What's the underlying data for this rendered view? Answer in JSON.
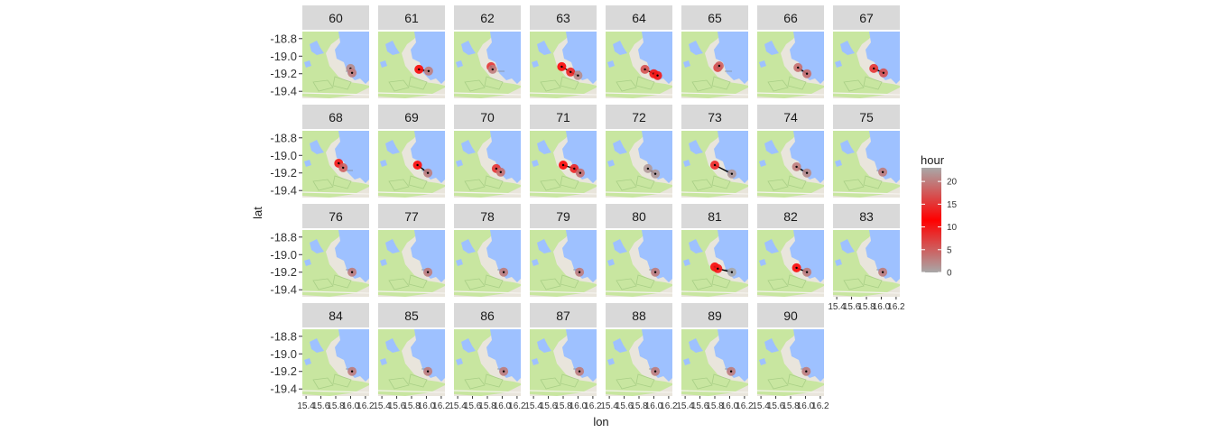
{
  "chart_data": {
    "type": "scatter",
    "title": "",
    "xlabel": "lon",
    "ylabel": "lat",
    "xlim": [
      15.35,
      16.25
    ],
    "ylim": [
      -19.48,
      -18.72
    ],
    "x_ticks": [
      "15.4",
      "15.6",
      "15.8",
      "16.0",
      "16.2"
    ],
    "y_ticks": [
      "-18.8",
      "-19.0",
      "-19.2",
      "-19.4"
    ],
    "y_tick_values": [
      -18.8,
      -19.0,
      -19.2,
      -19.4
    ],
    "background": "map-tiles",
    "facet_ncol": 8,
    "legend": {
      "title": "hour",
      "position": "right",
      "breaks": [
        0,
        5,
        10,
        15,
        20
      ],
      "labels": [
        "0",
        "5",
        "10",
        "15",
        "20"
      ],
      "range": [
        0,
        23
      ],
      "low_color": "#a8a8a8",
      "mid_color": "#ff0000",
      "high_color": "#a8a8a8"
    },
    "facets": [
      {
        "label": "60",
        "points": [
          {
            "lon": 16.0,
            "lat": -19.14,
            "hour": 2
          },
          {
            "lon": 16.02,
            "lat": -19.19,
            "hour": 20
          }
        ]
      },
      {
        "label": "61",
        "points": [
          {
            "lon": 15.9,
            "lat": -19.15,
            "hour": 12
          },
          {
            "lon": 16.03,
            "lat": -19.17,
            "hour": 20
          }
        ]
      },
      {
        "label": "62",
        "points": [
          {
            "lon": 15.85,
            "lat": -19.12,
            "hour": 15
          },
          {
            "lon": 15.87,
            "lat": -19.15,
            "hour": 20
          }
        ]
      },
      {
        "label": "63",
        "points": [
          {
            "lon": 15.78,
            "lat": -19.12,
            "hour": 11
          },
          {
            "lon": 15.9,
            "lat": -19.18,
            "hour": 14
          },
          {
            "lon": 16.0,
            "lat": -19.22,
            "hour": 2
          }
        ]
      },
      {
        "label": "64",
        "points": [
          {
            "lon": 15.88,
            "lat": -19.15,
            "hour": 6
          },
          {
            "lon": 16.0,
            "lat": -19.2,
            "hour": 13
          },
          {
            "lon": 16.05,
            "lat": -19.22,
            "hour": 10
          }
        ]
      },
      {
        "label": "65",
        "points": [
          {
            "lon": 15.84,
            "lat": -19.13,
            "hour": 16
          },
          {
            "lon": 15.86,
            "lat": -19.11,
            "hour": 18
          }
        ]
      },
      {
        "label": "66",
        "points": [
          {
            "lon": 15.9,
            "lat": -19.13,
            "hour": 4
          },
          {
            "lon": 16.02,
            "lat": -19.2,
            "hour": 19
          }
        ]
      },
      {
        "label": "67",
        "points": [
          {
            "lon": 15.9,
            "lat": -19.14,
            "hour": 8
          },
          {
            "lon": 16.03,
            "lat": -19.19,
            "hour": 17
          }
        ]
      },
      {
        "label": "68",
        "points": [
          {
            "lon": 15.84,
            "lat": -19.09,
            "hour": 13
          },
          {
            "lon": 15.9,
            "lat": -19.14,
            "hour": 18
          }
        ]
      },
      {
        "label": "69",
        "points": [
          {
            "lon": 15.88,
            "lat": -19.11,
            "hour": 11
          },
          {
            "lon": 16.02,
            "lat": -19.2,
            "hour": 20
          }
        ]
      },
      {
        "label": "70",
        "points": [
          {
            "lon": 15.92,
            "lat": -19.15,
            "hour": 15
          },
          {
            "lon": 15.98,
            "lat": -19.19,
            "hour": 19
          }
        ]
      },
      {
        "label": "71",
        "points": [
          {
            "lon": 15.8,
            "lat": -19.11,
            "hour": 12
          },
          {
            "lon": 15.95,
            "lat": -19.15,
            "hour": 14
          },
          {
            "lon": 16.03,
            "lat": -19.2,
            "hour": 19
          }
        ]
      },
      {
        "label": "72",
        "points": [
          {
            "lon": 15.92,
            "lat": -19.15,
            "hour": 22
          },
          {
            "lon": 16.02,
            "lat": -19.21,
            "hour": 1
          }
        ]
      },
      {
        "label": "73",
        "points": [
          {
            "lon": 15.8,
            "lat": -19.11,
            "hour": 14
          },
          {
            "lon": 16.03,
            "lat": -19.21,
            "hour": 1
          }
        ]
      },
      {
        "label": "74",
        "points": [
          {
            "lon": 15.88,
            "lat": -19.13,
            "hour": 20
          },
          {
            "lon": 16.02,
            "lat": -19.2,
            "hour": 21
          }
        ]
      },
      {
        "label": "75",
        "points": [
          {
            "lon": 16.02,
            "lat": -19.19,
            "hour": 20
          }
        ]
      },
      {
        "label": "76",
        "points": [
          {
            "lon": 16.02,
            "lat": -19.2,
            "hour": 20
          }
        ]
      },
      {
        "label": "77",
        "points": [
          {
            "lon": 16.02,
            "lat": -19.2,
            "hour": 20
          }
        ]
      },
      {
        "label": "78",
        "points": [
          {
            "lon": 16.02,
            "lat": -19.2,
            "hour": 20
          }
        ]
      },
      {
        "label": "79",
        "points": [
          {
            "lon": 16.02,
            "lat": -19.2,
            "hour": 20
          }
        ]
      },
      {
        "label": "80",
        "points": [
          {
            "lon": 16.02,
            "lat": -19.2,
            "hour": 20
          }
        ]
      },
      {
        "label": "81",
        "points": [
          {
            "lon": 15.8,
            "lat": -19.14,
            "hour": 12
          },
          {
            "lon": 15.84,
            "lat": -19.16,
            "hour": 10
          },
          {
            "lon": 16.03,
            "lat": -19.2,
            "hour": 0
          }
        ]
      },
      {
        "label": "82",
        "points": [
          {
            "lon": 15.88,
            "lat": -19.15,
            "hour": 12
          },
          {
            "lon": 16.02,
            "lat": -19.2,
            "hour": 20
          }
        ]
      },
      {
        "label": "83",
        "points": [
          {
            "lon": 16.02,
            "lat": -19.2,
            "hour": 20
          }
        ]
      },
      {
        "label": "84",
        "points": [
          {
            "lon": 16.02,
            "lat": -19.2,
            "hour": 20
          }
        ]
      },
      {
        "label": "85",
        "points": [
          {
            "lon": 16.02,
            "lat": -19.2,
            "hour": 20
          }
        ]
      },
      {
        "label": "86",
        "points": [
          {
            "lon": 16.02,
            "lat": -19.2,
            "hour": 20
          }
        ]
      },
      {
        "label": "87",
        "points": [
          {
            "lon": 16.02,
            "lat": -19.2,
            "hour": 20
          }
        ]
      },
      {
        "label": "88",
        "points": [
          {
            "lon": 16.02,
            "lat": -19.2,
            "hour": 20
          }
        ]
      },
      {
        "label": "89",
        "points": [
          {
            "lon": 16.02,
            "lat": -19.2,
            "hour": 20
          }
        ]
      },
      {
        "label": "90",
        "points": [
          {
            "lon": 16.01,
            "lat": -19.2,
            "hour": 20
          }
        ]
      }
    ],
    "colors": {
      "strip_bg": "#d9d9d9",
      "land": "#e9e5dc",
      "park": "#c8e6a0",
      "water": "#9ec1ff",
      "track_line": "#000000"
    }
  }
}
